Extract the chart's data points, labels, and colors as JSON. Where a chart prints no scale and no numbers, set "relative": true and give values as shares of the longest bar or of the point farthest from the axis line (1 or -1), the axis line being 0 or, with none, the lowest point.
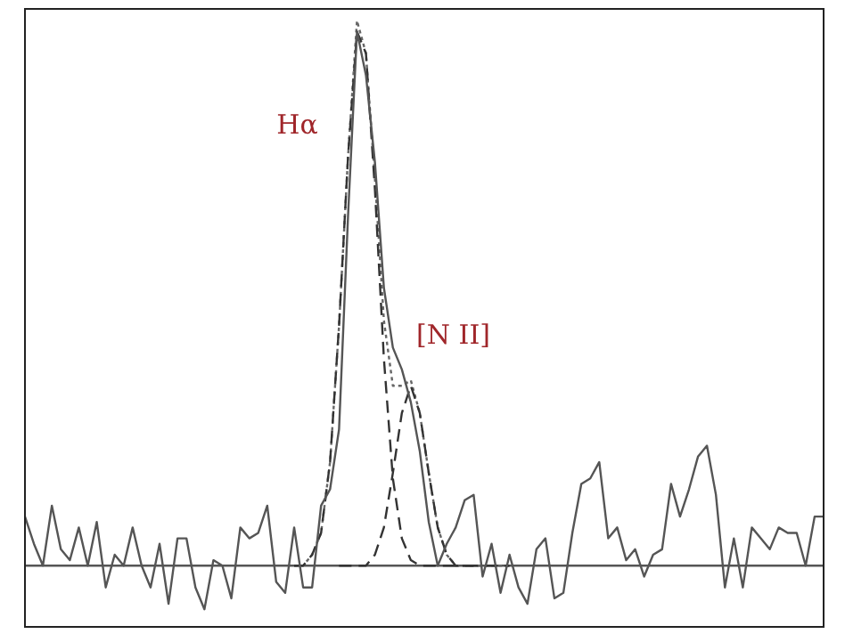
{
  "chart_data": {
    "type": "line",
    "relative": true,
    "legend": false,
    "grid": false,
    "marker": "none",
    "annotations": [
      "Hα",
      "[N II]"
    ],
    "categories": [
      null,
      null,
      null,
      null,
      null,
      null,
      null,
      null,
      null,
      null,
      null,
      null,
      null,
      null,
      null,
      null,
      null,
      null,
      null,
      null,
      null,
      null,
      null,
      null,
      null,
      null,
      null,
      null,
      null,
      null,
      null,
      null,
      null,
      null,
      null,
      null,
      null,
      null,
      null,
      null,
      null,
      null,
      null,
      null,
      null,
      null,
      null,
      null,
      null,
      null,
      null,
      null,
      null,
      null,
      null,
      null,
      null,
      null,
      null,
      null,
      null,
      null,
      null,
      null,
      null,
      null,
      null,
      null,
      null,
      null,
      null,
      null,
      null,
      null,
      null,
      null,
      null,
      null,
      null,
      null,
      null,
      null,
      null,
      null,
      null,
      null,
      null,
      null,
      null,
      null
    ],
    "series": [
      {
        "color": "#555555",
        "line_style": "solid",
        "values": [
          0.09,
          0.04,
          0.0,
          0.11,
          0.03,
          0.01,
          0.07,
          0.0,
          0.08,
          -0.04,
          0.02,
          0,
          0.07,
          0,
          -0.04,
          0.04,
          -0.07,
          0.05,
          0.05,
          -0.04,
          -0.08,
          0.01,
          0,
          -0.06,
          0.07,
          0.05,
          0.06,
          0.11,
          -0.03,
          -0.05,
          0.07,
          -0.04,
          -0.04,
          0.11,
          0.14,
          0.25,
          0.64,
          0.98,
          0.9,
          0.74,
          0.51,
          0.4,
          0.36,
          0.3,
          0.21,
          0.08,
          0.0,
          0.04,
          0.07,
          0.12,
          0.13,
          -0.02,
          0.04,
          -0.05,
          0.02,
          -0.04,
          -0.07,
          0.03,
          0.05,
          -0.06,
          -0.05,
          0.06,
          0.15,
          0.16,
          0.19,
          0.05,
          0.07,
          0.01,
          0.03,
          -0.02,
          0.02,
          0.03,
          0.15,
          0.09,
          0.14,
          0.2,
          0.22,
          0.13,
          -0.04,
          0.05,
          -0.04,
          0.07,
          0.05,
          0.03,
          0.07,
          0.06,
          0.06,
          0.0,
          0.09,
          0.09
        ]
      },
      {
        "color": "#333333",
        "line_style": "dashed",
        "values": [
          null,
          null,
          null,
          null,
          null,
          null,
          null,
          null,
          null,
          null,
          null,
          null,
          null,
          null,
          null,
          null,
          null,
          null,
          null,
          null,
          null,
          null,
          null,
          null,
          null,
          null,
          null,
          null,
          null,
          null,
          0,
          0,
          0.02,
          0.06,
          0.19,
          0.44,
          0.75,
          0.98,
          0.94,
          0.69,
          0.38,
          0.16,
          0.05,
          0.01,
          0,
          0,
          0,
          0,
          0,
          0,
          0,
          null,
          null,
          null,
          null,
          null,
          null,
          null,
          null,
          null,
          null,
          null,
          null,
          null,
          null,
          null,
          null,
          null,
          null,
          null,
          null,
          null,
          null,
          null,
          null,
          null,
          null,
          null,
          null,
          null,
          null,
          null,
          null,
          null,
          null,
          null,
          null,
          null,
          null,
          null
        ]
      },
      {
        "color": "#333333",
        "line_style": "dashed",
        "values": [
          null,
          null,
          null,
          null,
          null,
          null,
          null,
          null,
          null,
          null,
          null,
          null,
          null,
          null,
          null,
          null,
          null,
          null,
          null,
          null,
          null,
          null,
          null,
          null,
          null,
          null,
          null,
          null,
          null,
          null,
          null,
          null,
          null,
          null,
          null,
          0,
          0,
          0,
          0,
          0.02,
          0.07,
          0.17,
          0.28,
          0.33,
          0.28,
          0.17,
          0.07,
          0.02,
          0,
          0,
          0,
          0,
          0,
          0,
          0,
          null,
          null,
          null,
          null,
          null,
          null,
          null,
          null,
          null,
          null,
          null,
          null,
          null,
          null,
          null,
          null,
          null,
          null,
          null,
          null,
          null,
          null,
          null,
          null,
          null,
          null,
          null,
          null,
          null,
          null,
          null,
          null,
          null,
          null,
          null
        ]
      },
      {
        "color": "#666666",
        "line_style": "dotted",
        "values": [
          null,
          null,
          null,
          null,
          null,
          null,
          null,
          null,
          null,
          null,
          null,
          null,
          null,
          null,
          null,
          null,
          null,
          null,
          null,
          null,
          null,
          null,
          null,
          null,
          null,
          null,
          null,
          null,
          null,
          null,
          0,
          0,
          0.02,
          0.06,
          0.19,
          0.44,
          0.75,
          1,
          0.94,
          0.71,
          0.45,
          0.33,
          0.33,
          0.34,
          0.28,
          0.17,
          0.07,
          0.02,
          0,
          0,
          0,
          0,
          0,
          0,
          0,
          null,
          null,
          null,
          null,
          null,
          null,
          null,
          null,
          null,
          null,
          null,
          null,
          null,
          null,
          null,
          null,
          null,
          null,
          null,
          null,
          null,
          null,
          null,
          null,
          null,
          null,
          null,
          null,
          null,
          null,
          null,
          null,
          null,
          null,
          null
        ]
      }
    ]
  }
}
